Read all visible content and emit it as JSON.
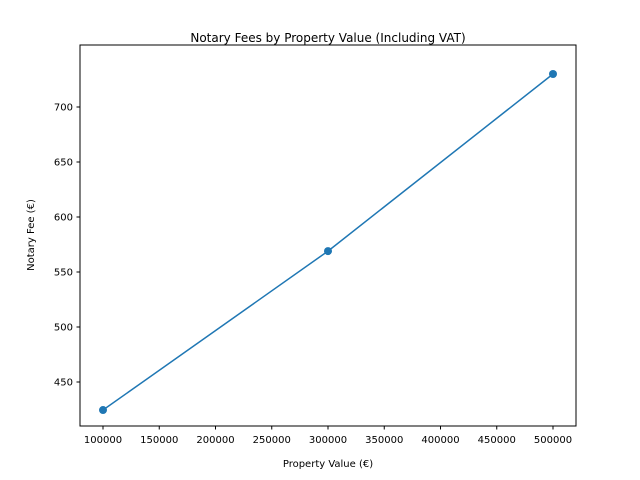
{
  "chart_data": {
    "type": "line",
    "title": "Notary Fees by Property Value (Including VAT)",
    "xlabel": "Property Value (€)",
    "ylabel": "Notary Fee (€)",
    "x": [
      100000,
      300000,
      500000
    ],
    "series": [
      {
        "name": "Notary Fee",
        "values": [
          424.5,
          569,
          730
        ],
        "color": "#1f77b4",
        "marker": "circle"
      }
    ],
    "xlim": [
      80000,
      520000
    ],
    "ylim": [
      410,
      745
    ],
    "xticks": [
      100000,
      150000,
      200000,
      250000,
      300000,
      350000,
      400000,
      450000,
      500000
    ],
    "yticks": [
      450,
      500,
      550,
      600,
      650,
      700
    ],
    "grid": false,
    "legend": null
  },
  "labels": {
    "title": "Notary Fees by Property Value (Including VAT)",
    "xlabel": "Property Value (€)",
    "ylabel": "Notary Fee (€)"
  }
}
